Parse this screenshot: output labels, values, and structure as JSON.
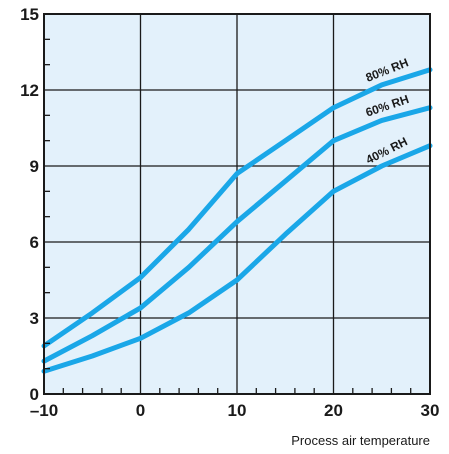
{
  "chart_data": {
    "type": "line",
    "title": "",
    "xlabel": "Process air temperature",
    "ylabel": "",
    "xlim": [
      -10,
      30
    ],
    "ylim": [
      0,
      15
    ],
    "x_ticks": [
      -10,
      0,
      10,
      20,
      30
    ],
    "y_ticks": [
      0,
      3,
      6,
      9,
      12,
      15
    ],
    "x_tick_labels": [
      "–10",
      "0",
      "10",
      "20",
      "30"
    ],
    "y_tick_labels": [
      "0",
      "3",
      "6",
      "9",
      "12",
      "15"
    ],
    "grid": true,
    "legend": "inline labels on curves",
    "series": [
      {
        "name": "80% RH",
        "points": [
          [
            -10,
            1.9
          ],
          [
            -5,
            3.2
          ],
          [
            0,
            4.6
          ],
          [
            5,
            6.5
          ],
          [
            10,
            8.7
          ],
          [
            15,
            10.0
          ],
          [
            20,
            11.3
          ],
          [
            25,
            12.2
          ],
          [
            30,
            12.8
          ]
        ]
      },
      {
        "name": "60% RH",
        "points": [
          [
            -10,
            1.3
          ],
          [
            -5,
            2.3
          ],
          [
            0,
            3.4
          ],
          [
            5,
            5.0
          ],
          [
            10,
            6.8
          ],
          [
            15,
            8.4
          ],
          [
            20,
            10.0
          ],
          [
            25,
            10.8
          ],
          [
            30,
            11.3
          ]
        ]
      },
      {
        "name": "40% RH",
        "points": [
          [
            -10,
            0.9
          ],
          [
            -5,
            1.5
          ],
          [
            0,
            2.2
          ],
          [
            5,
            3.2
          ],
          [
            10,
            4.5
          ],
          [
            15,
            6.3
          ],
          [
            20,
            8.0
          ],
          [
            25,
            9.0
          ],
          [
            30,
            9.8
          ]
        ]
      }
    ],
    "colors": {
      "plot_background": "#e3f1fb",
      "line": "#1aa7e8",
      "grid": "#1a1a1a",
      "text": "#1a1a1a"
    }
  }
}
